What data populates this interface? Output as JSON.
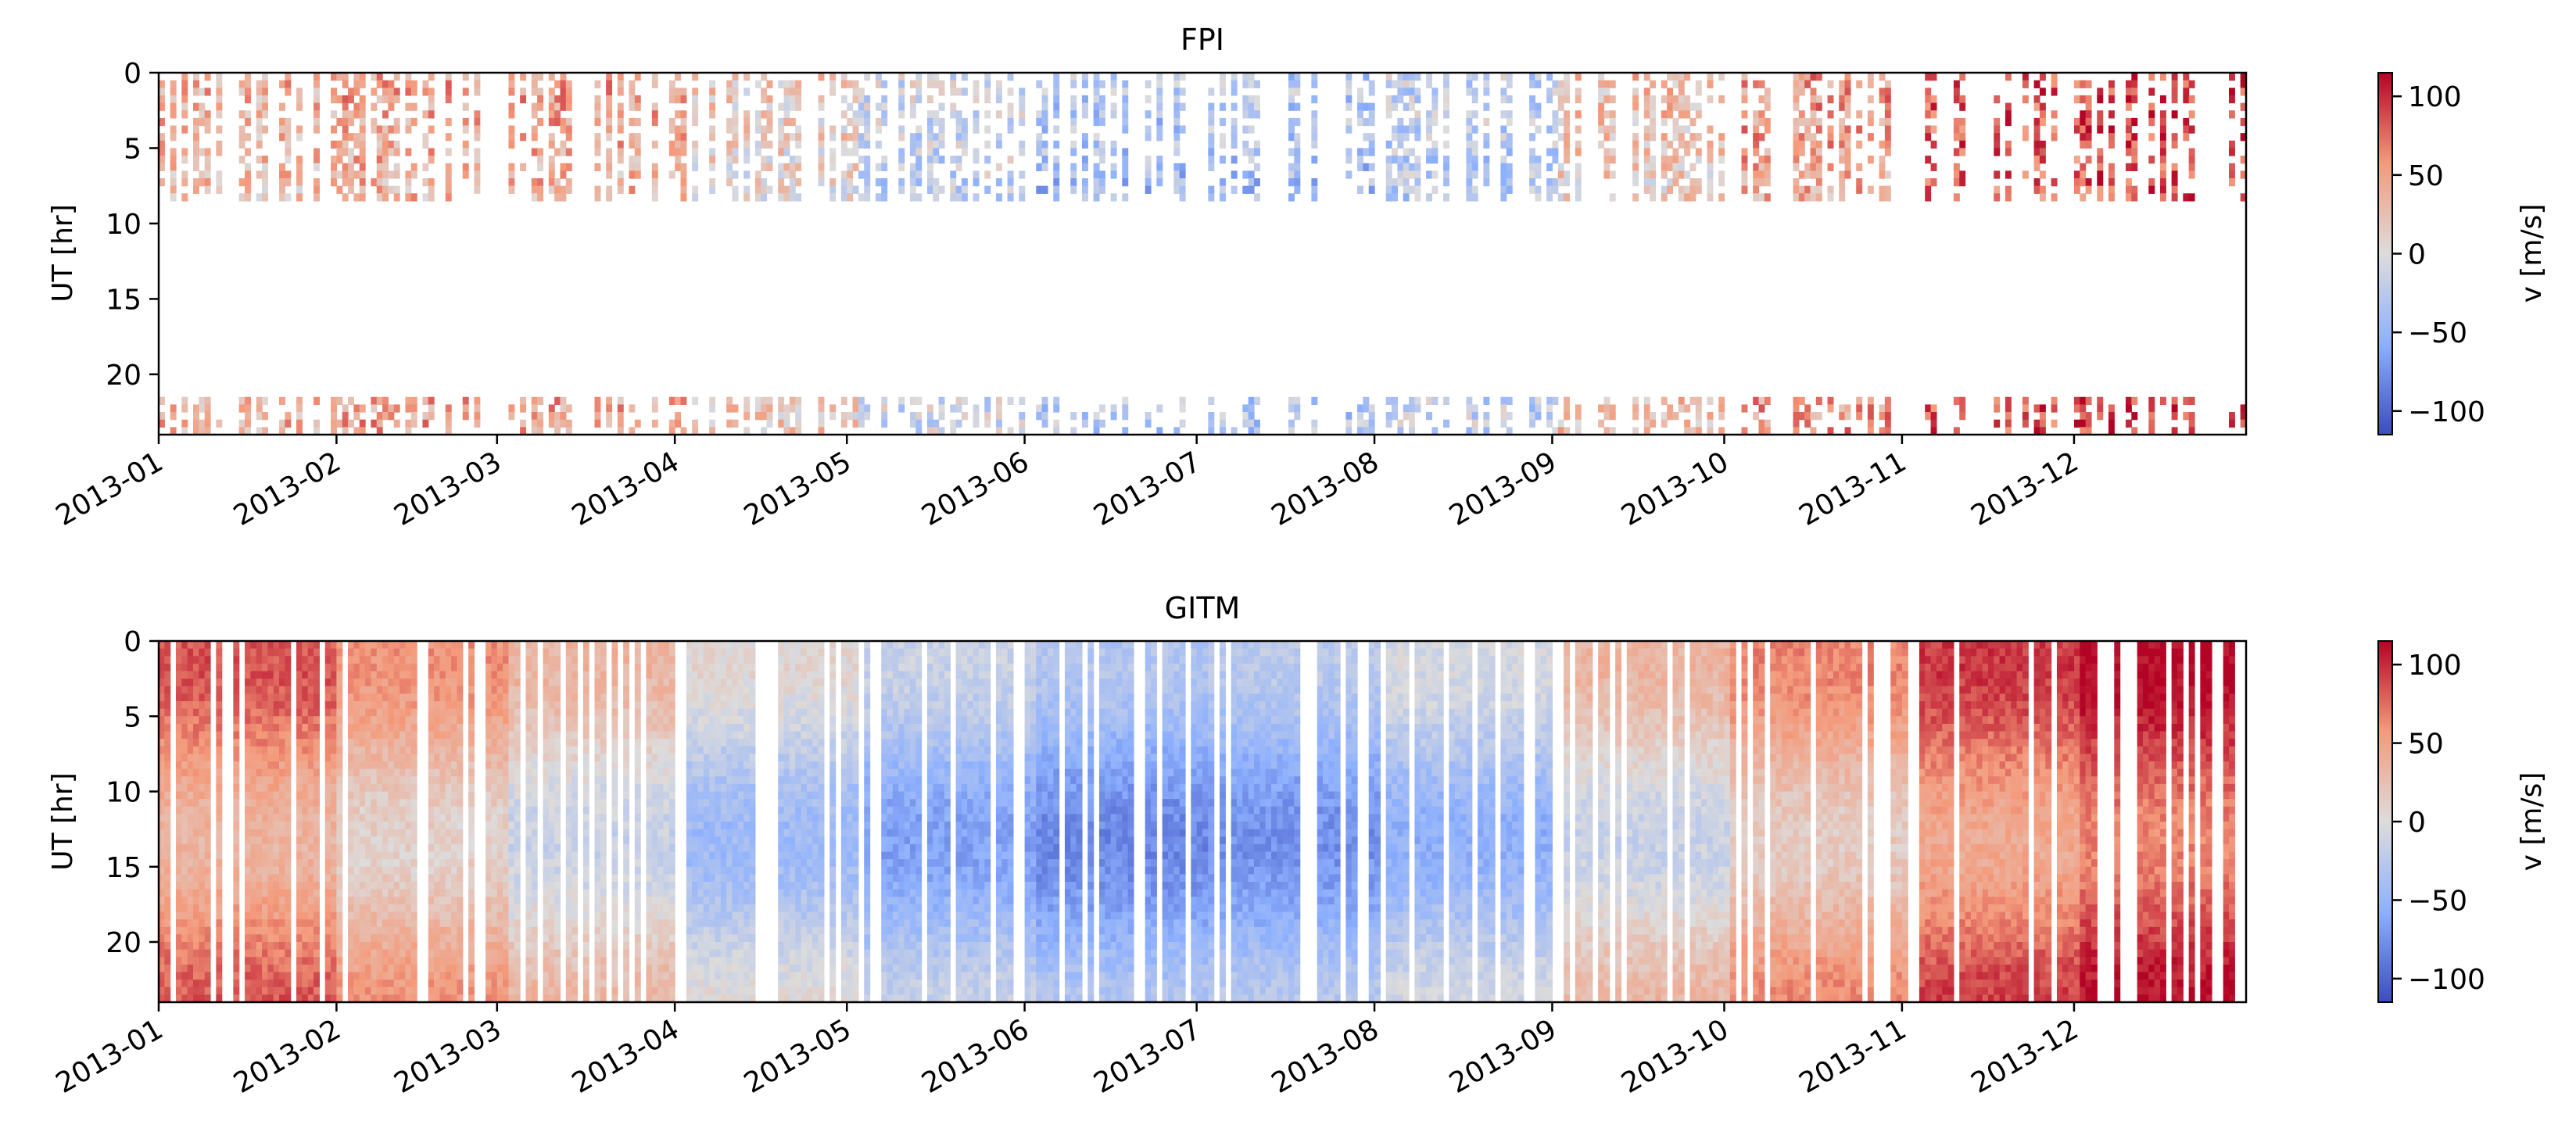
{
  "chart_data": [
    {
      "type": "heatmap",
      "title": "FPI",
      "xlabel": "",
      "ylabel": "UT [hr]",
      "x_ticks": [
        "2013-01",
        "2013-02",
        "2013-03",
        "2013-04",
        "2013-05",
        "2013-06",
        "2013-07",
        "2013-08",
        "2013-09",
        "2013-10",
        "2013-11",
        "2013-12"
      ],
      "xlim": [
        "2013-01-01",
        "2013-12-31"
      ],
      "y_ticks": [
        0,
        5,
        10,
        15,
        20
      ],
      "ylim": [
        24,
        0
      ],
      "y_inverted": true,
      "colorbar": {
        "label": "v [m/s]",
        "range": [
          -115,
          115
        ],
        "ticks": [
          100,
          50,
          0,
          -50,
          -100
        ],
        "tick_labels": [
          "100",
          "50",
          "0",
          "−50",
          "−100"
        ],
        "colormap": "coolwarm",
        "colors": [
          "#3b4cc0",
          "#dddcdc",
          "#b40426"
        ]
      },
      "coverage_ut_hours": [
        [
          0,
          8.5
        ],
        [
          21.5,
          24
        ]
      ],
      "seasonal_mean_v_by_month": [
        30,
        40,
        40,
        10,
        -20,
        -40,
        -40,
        -30,
        20,
        45,
        75,
        85
      ]
    },
    {
      "type": "heatmap",
      "title": "GITM",
      "xlabel": "",
      "ylabel": "UT [hr]",
      "x_ticks": [
        "2013-01",
        "2013-02",
        "2013-03",
        "2013-04",
        "2013-05",
        "2013-06",
        "2013-07",
        "2013-08",
        "2013-09",
        "2013-10",
        "2013-11",
        "2013-12"
      ],
      "xlim": [
        "2013-01-01",
        "2013-12-31"
      ],
      "y_ticks": [
        0,
        5,
        10,
        15,
        20
      ],
      "ylim": [
        24,
        0
      ],
      "y_inverted": true,
      "colorbar": {
        "label": "v [m/s]",
        "range": [
          -115,
          115
        ],
        "ticks": [
          100,
          50,
          0,
          -50,
          -100
        ],
        "tick_labels": [
          "100",
          "50",
          "0",
          "−50",
          "−100"
        ],
        "colormap": "coolwarm",
        "colors": [
          "#3b4cc0",
          "#dddcdc",
          "#b40426"
        ]
      },
      "coverage_ut_hours": [
        [
          0,
          24
        ]
      ],
      "seasonal_mean_v_by_month": [
        60,
        35,
        10,
        -20,
        -40,
        -55,
        -50,
        -30,
        10,
        40,
        70,
        90
      ]
    }
  ]
}
